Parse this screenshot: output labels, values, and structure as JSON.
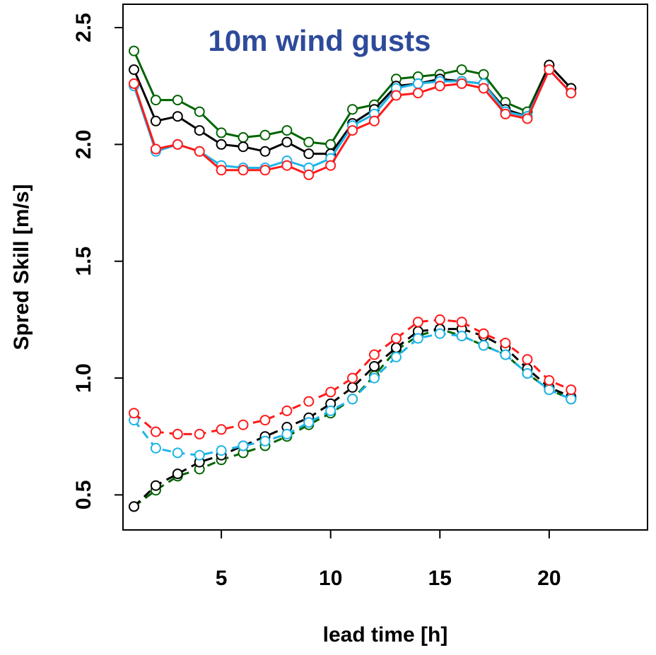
{
  "chart_data": {
    "type": "line",
    "title": "10m wind gusts",
    "xlabel": "lead time [h]",
    "ylabel": "Spred Skill [m/s]",
    "xlim": [
      0.5,
      24.5
    ],
    "ylim": [
      0.35,
      2.6
    ],
    "xticks": [
      5,
      10,
      15,
      20
    ],
    "yticks": [
      0.5,
      1.0,
      1.5,
      2.0,
      2.5
    ],
    "xtick_labels": [
      "5",
      "10",
      "15",
      "20"
    ],
    "ytick_labels": [
      "0.5",
      "1.0",
      "1.5",
      "2.0",
      "2.5"
    ],
    "grid": false,
    "x": [
      1,
      2,
      3,
      4,
      5,
      6,
      7,
      8,
      9,
      10,
      11,
      12,
      13,
      14,
      15,
      16,
      17,
      18,
      19,
      20,
      21
    ],
    "series": [
      {
        "color": "#006400",
        "style": "solid",
        "values": [
          2.4,
          2.19,
          2.19,
          2.14,
          2.05,
          2.03,
          2.04,
          2.06,
          2.01,
          2.0,
          2.15,
          2.17,
          2.28,
          2.29,
          2.3,
          2.32,
          2.3,
          2.18,
          2.14,
          2.34,
          2.24
        ]
      },
      {
        "color": "#000000",
        "style": "solid",
        "values": [
          2.32,
          2.1,
          2.12,
          2.06,
          2.0,
          1.99,
          1.97,
          2.01,
          1.96,
          1.96,
          2.09,
          2.15,
          2.25,
          2.26,
          2.28,
          2.27,
          2.26,
          2.15,
          2.12,
          2.34,
          2.24
        ]
      },
      {
        "color": "#1EB4E8",
        "style": "solid",
        "values": [
          2.25,
          1.97,
          2.0,
          1.97,
          1.91,
          1.9,
          1.9,
          1.93,
          1.9,
          1.94,
          2.08,
          2.13,
          2.24,
          2.26,
          2.27,
          2.27,
          2.26,
          2.14,
          2.12,
          2.32,
          2.22
        ]
      },
      {
        "color": "#FF1A1A",
        "style": "solid",
        "values": [
          2.26,
          1.98,
          2.0,
          1.97,
          1.89,
          1.89,
          1.89,
          1.91,
          1.87,
          1.91,
          2.06,
          2.1,
          2.21,
          2.22,
          2.25,
          2.26,
          2.24,
          2.13,
          2.11,
          2.32,
          2.22
        ]
      },
      {
        "color": "#006400",
        "style": "dashed",
        "values": [
          0.45,
          0.52,
          0.58,
          0.61,
          0.65,
          0.68,
          0.71,
          0.75,
          0.8,
          0.85,
          0.91,
          1.01,
          1.12,
          1.18,
          1.21,
          1.18,
          1.14,
          1.1,
          1.02,
          0.95,
          0.91
        ]
      },
      {
        "color": "#000000",
        "style": "dashed",
        "values": [
          0.45,
          0.54,
          0.59,
          0.64,
          0.67,
          0.71,
          0.75,
          0.79,
          0.83,
          0.89,
          0.96,
          1.05,
          1.13,
          1.2,
          1.21,
          1.21,
          1.18,
          1.13,
          1.04,
          0.96,
          0.92
        ]
      },
      {
        "color": "#1EB4E8",
        "style": "dashed",
        "values": [
          0.82,
          0.7,
          0.68,
          0.67,
          0.69,
          0.71,
          0.73,
          0.76,
          0.81,
          0.86,
          0.91,
          1.0,
          1.09,
          1.17,
          1.19,
          1.18,
          1.14,
          1.1,
          1.02,
          0.95,
          0.91
        ]
      },
      {
        "color": "#FF1A1A",
        "style": "dashed",
        "values": [
          0.85,
          0.77,
          0.76,
          0.76,
          0.78,
          0.8,
          0.82,
          0.86,
          0.9,
          0.94,
          1.0,
          1.1,
          1.17,
          1.24,
          1.25,
          1.24,
          1.19,
          1.15,
          1.08,
          0.99,
          0.95
        ]
      }
    ],
    "colors": {
      "title": "#2E4A9A",
      "frame": "#000000",
      "background": "#ffffff"
    }
  }
}
